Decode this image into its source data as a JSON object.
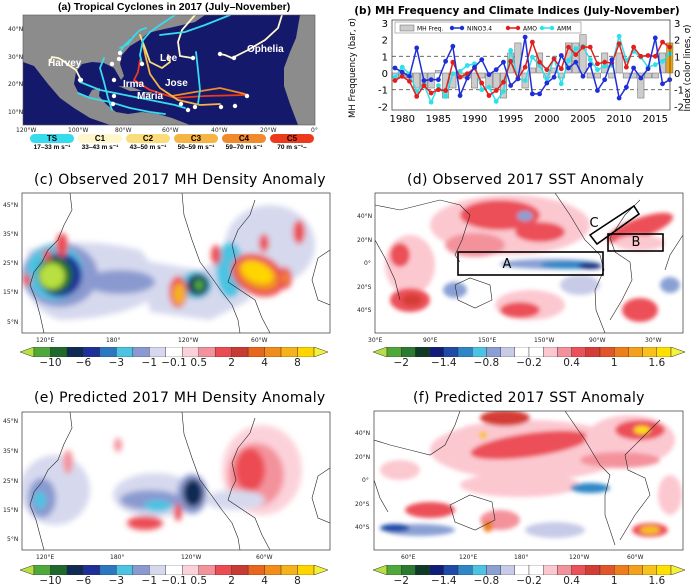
{
  "panel_a": {
    "title": "(a) Tropical Cyclones in 2017 (July–November)",
    "lat_ticks": [
      "40°N",
      "30°N",
      "20°N",
      "10°N"
    ],
    "lon_ticks": [
      "120°W",
      "100°W",
      "80°W",
      "60°W",
      "40°W",
      "20°W",
      "0°"
    ],
    "storms": [
      "Harvey",
      "Irma",
      "Maria",
      "Jose",
      "Lee",
      "Ophelia"
    ],
    "ocean_color": "#15196b",
    "land_color": "#8c8c8c",
    "legend": [
      {
        "cat": "TS",
        "range": "17–33 m s⁻¹",
        "color": "#36dcee"
      },
      {
        "cat": "C1",
        "range": "33–43 m s⁻¹",
        "color": "#fff6cc"
      },
      {
        "cat": "C2",
        "range": "43–50 m s⁻¹",
        "color": "#fbdc7a"
      },
      {
        "cat": "C3",
        "range": "50–59 m s⁻¹",
        "color": "#f6b443"
      },
      {
        "cat": "C4",
        "range": "59–70 m s⁻¹",
        "color": "#f08a2a"
      },
      {
        "cat": "C5",
        "range": "70 m s⁻¹–",
        "color": "#ee3a1c"
      }
    ]
  },
  "chart_data": {
    "type": "bar+line",
    "title": "(b) MH Frequency and Climate Indices (July-November)",
    "ylabel": "MH Freqquency (bar, σ)",
    "ylabel_right": "Index (color lines, σ)",
    "ylim": [
      -2.2,
      3.2
    ],
    "yticks": [
      -2,
      -1,
      0,
      1,
      2,
      3
    ],
    "xticks": [
      1980,
      1985,
      1990,
      1995,
      2000,
      2005,
      2010,
      2015
    ],
    "reference_lines": [
      -1,
      1
    ],
    "legend_position": "top-left",
    "x": [
      1979,
      1980,
      1981,
      1982,
      1983,
      1984,
      1985,
      1986,
      1987,
      1988,
      1989,
      1990,
      1991,
      1992,
      1993,
      1994,
      1995,
      1996,
      1997,
      1998,
      1999,
      2000,
      2001,
      2002,
      2003,
      2004,
      2005,
      2006,
      2007,
      2008,
      2009,
      2010,
      2011,
      2012,
      2013,
      2014,
      2015,
      2016,
      2017
    ],
    "series": [
      {
        "name": "MH Freq.",
        "kind": "bar",
        "color": "#cccccc",
        "highlight_color": "#f5a300",
        "values": [
          -0.3,
          -0.3,
          -0.3,
          -0.9,
          -0.9,
          -0.9,
          0.15,
          -1.5,
          -0.9,
          -0.3,
          -0.3,
          -0.9,
          -0.3,
          -0.9,
          -0.9,
          -1.5,
          1.2,
          1.8,
          -0.9,
          0.3,
          1.2,
          -0.3,
          0.3,
          -0.3,
          1.8,
          1.8,
          2.3,
          -0.3,
          -0.3,
          1.2,
          -0.3,
          1.2,
          -0.3,
          -0.3,
          -1.5,
          -0.3,
          -0.3,
          1.2,
          1.8
        ]
      },
      {
        "name": "NINO3.4",
        "kind": "line",
        "color": "#1f2fd8",
        "values": [
          0.3,
          0.05,
          -0.2,
          1.5,
          -0.45,
          -0.4,
          -0.4,
          0.7,
          1.6,
          -1.35,
          -0.3,
          0.35,
          0.8,
          -0.1,
          0.2,
          0.65,
          -0.75,
          -0.35,
          2.15,
          -1.25,
          -1.25,
          -0.6,
          -0.25,
          1.05,
          0.3,
          0.65,
          -0.2,
          0.5,
          -1.05,
          -0.4,
          0.8,
          -1.5,
          -0.85,
          0.3,
          -0.3,
          0.25,
          2.1,
          -0.65,
          -0.4
        ]
      },
      {
        "name": "AMO",
        "kind": "line",
        "color": "#e21e1e",
        "values": [
          -0.45,
          -0.2,
          -0.5,
          -1.4,
          -0.75,
          -1.2,
          -1.0,
          -1.05,
          0.65,
          -0.25,
          -0.05,
          0.3,
          -0.6,
          -1.35,
          -1.05,
          -0.55,
          0.7,
          -0.35,
          0.35,
          1.85,
          0.65,
          0.2,
          0.85,
          0.25,
          1.55,
          1.1,
          1.55,
          1.55,
          0.55,
          0.65,
          0.6,
          1.75,
          0.35,
          1.55,
          1.0,
          1.05,
          1.0,
          1.85,
          1.55
        ]
      },
      {
        "name": "AMM",
        "kind": "line",
        "color": "#2ee0e8",
        "values": [
          -0.25,
          0.35,
          -0.05,
          -1.1,
          -0.7,
          -1.75,
          -0.75,
          -1.4,
          -0.05,
          0.1,
          0.45,
          0.55,
          -1.0,
          -0.85,
          -1.7,
          -1.1,
          1.35,
          -0.35,
          -0.45,
          0.95,
          0.45,
          -0.35,
          0.9,
          -0.65,
          0.75,
          1.45,
          1.6,
          0.8,
          0.2,
          0.4,
          0.45,
          2.2,
          0.75,
          1.3,
          0.95,
          0.35,
          0.5,
          0.7,
          1.15
        ]
      }
    ]
  },
  "panel_c": {
    "title": "(c) Observed 2017 MH Density Anomaly",
    "lat_ticks": [
      "45°N",
      "35°N",
      "25°N",
      "15°N",
      "5°N"
    ],
    "lon_ticks": [
      "120°E",
      "180°",
      "120°W",
      "60°W"
    ]
  },
  "panel_d": {
    "title": "(d) Observed 2017 SST Anomaly",
    "lat_ticks": [
      "40°N",
      "20°N",
      "0°",
      "20°S",
      "40°S"
    ],
    "lon_ticks": [
      "30°E",
      "90°E",
      "150°E",
      "150°W",
      "90°W",
      "30°W"
    ],
    "boxes": [
      "A",
      "B",
      "C"
    ]
  },
  "panel_e": {
    "title": "(e) Predicted 2017 MH Density Anomaly",
    "lat_ticks": [
      "45°N",
      "35°N",
      "25°N",
      "15°N",
      "5°N"
    ],
    "lon_ticks": [
      "120°E",
      "180°",
      "120°W",
      "60°W"
    ]
  },
  "panel_f": {
    "title": "(f) Predicted 2017 SST Anomaly",
    "lat_ticks": [
      "40°N",
      "20°N",
      "0°",
      "20°S",
      "40°S"
    ],
    "lon_ticks": [
      "60°E",
      "120°E",
      "180°",
      "120°W",
      "60°W"
    ]
  },
  "colorbar_mh": {
    "labels": [
      "−10",
      "−6",
      "−3",
      "−1",
      "−0.1",
      "0.5",
      "2",
      "4",
      "8"
    ],
    "low_color": "#b8e040",
    "high_color": "#f2f23a",
    "colors": [
      "#4fa83a",
      "#1f6a2a",
      "#0f2a55",
      "#1f2f9a",
      "#2b78c0",
      "#4cc3e2",
      "#8a9ad0",
      "#d6d9ee",
      "#ffffff",
      "#fcd2da",
      "#f4929c",
      "#ec4b52",
      "#c73b32",
      "#e9661e",
      "#f28c1a",
      "#f6b21c",
      "#ffd500"
    ]
  },
  "colorbar_sst": {
    "labels": [
      "−2",
      "−1.4",
      "−0.8",
      "−0.2",
      "0.4",
      "1",
      "1.6"
    ],
    "low_color": "#b8e040",
    "high_color": "#f2f23a",
    "colors": [
      "#4fa83a",
      "#2a7a30",
      "#0f3a25",
      "#101e78",
      "#1f4aa8",
      "#2f86c6",
      "#4cc3e2",
      "#8aa0d4",
      "#c8cbe8",
      "#ffffff",
      "#ffffff",
      "#fcc8d0",
      "#f4929c",
      "#ec5058",
      "#d43c36",
      "#e0562a",
      "#ee7e1c",
      "#f4a01c",
      "#f8c21c",
      "#ffe000"
    ]
  }
}
